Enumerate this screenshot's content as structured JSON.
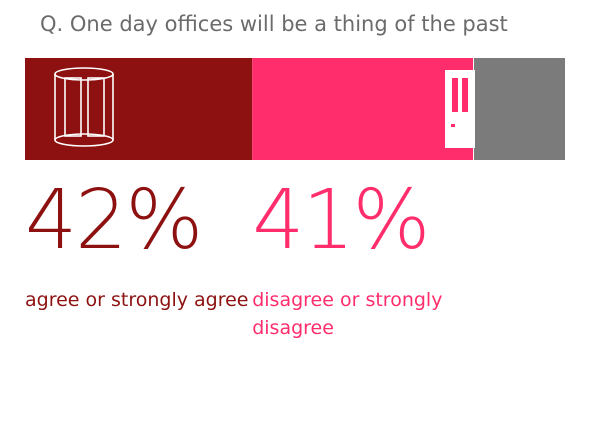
{
  "chart_data": {
    "type": "stacked-bar",
    "title": "Q. One day offices will be a thing of the past",
    "categories": [
      "agree or strongly agree",
      "disagree or strongly disagree",
      null
    ],
    "values": [
      42,
      41,
      17
    ],
    "value_labels": [
      "42%",
      "41%",
      null
    ],
    "colors": [
      "#8e1111",
      "#ff2d6b",
      "#7b7b7b"
    ],
    "xlim": [
      0,
      100
    ]
  }
}
